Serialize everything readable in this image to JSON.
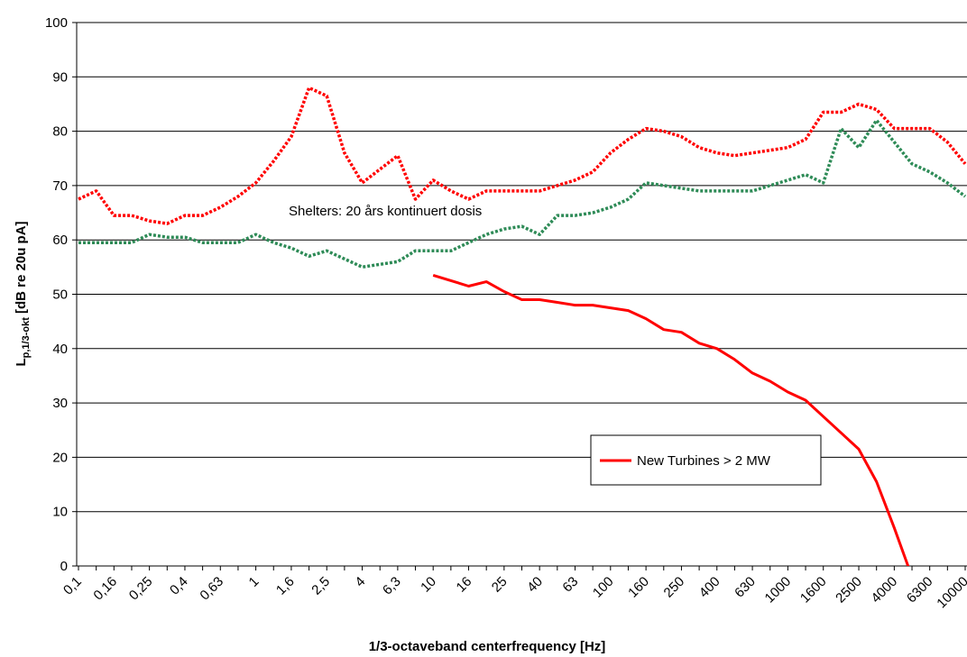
{
  "chart_data": {
    "type": "line",
    "ylabel": {
      "main": "L",
      "sub": "p,1/3-okt",
      "rest": " [dB re 20u pA]"
    },
    "xlabel": "1/3-octaveband centerfrequency [Hz]",
    "annotation": "Shelters: 20 års kontinuert dosis",
    "categories": [
      "0,1",
      null,
      "0,16",
      null,
      "0,25",
      null,
      "0,4",
      null,
      "0,63",
      null,
      "1",
      null,
      "1,6",
      null,
      "2,5",
      null,
      "4",
      null,
      "6,3",
      null,
      "10",
      null,
      "16",
      null,
      "25",
      null,
      "40",
      null,
      "63",
      null,
      "100",
      null,
      "160",
      null,
      "250",
      null,
      "400",
      null,
      "630",
      null,
      "1000",
      null,
      "1600",
      null,
      "2500",
      null,
      "4000",
      null,
      "6300",
      null,
      "10000"
    ],
    "ylim": [
      0,
      100
    ],
    "yticks": [
      0,
      10,
      20,
      30,
      40,
      50,
      60,
      70,
      80,
      90,
      100
    ],
    "grid": true,
    "series": [
      {
        "color": "#ff0000",
        "style": "dotted",
        "values": [
          67.5,
          69,
          64.5,
          64.5,
          63.5,
          63,
          64.5,
          64.5,
          66,
          68,
          70.5,
          74.5,
          79,
          88,
          86.5,
          76,
          70.5,
          73,
          75.5,
          67.5,
          71,
          69,
          67.5,
          69,
          69,
          69,
          69,
          70,
          71,
          72.5,
          76,
          78.5,
          80.5,
          80,
          79,
          77,
          76,
          75.5,
          76,
          76.5,
          77,
          78.5,
          83.5,
          83.5,
          85,
          84,
          80.5,
          80.5,
          80.5,
          78,
          74
        ]
      },
      {
        "color": "#2e8b57",
        "style": "dotted",
        "values": [
          59.5,
          59.5,
          59.5,
          59.5,
          61,
          60.5,
          60.5,
          59.5,
          59.5,
          59.5,
          61,
          59.5,
          58.5,
          57,
          58,
          56.5,
          55,
          55.5,
          56,
          58,
          58,
          58,
          59.5,
          61,
          62,
          62.5,
          61,
          64.5,
          64.5,
          65,
          66,
          67.5,
          70.5,
          70,
          69.5,
          69,
          69,
          69,
          69,
          70,
          71,
          72,
          70.5,
          80.5,
          77,
          82,
          78,
          74,
          72.5,
          70.5,
          68
        ]
      },
      {
        "name": "New Turbines > 2 MW",
        "color": "#ff0000",
        "style": "solid",
        "values": [
          null,
          null,
          null,
          null,
          null,
          null,
          null,
          null,
          null,
          null,
          null,
          null,
          null,
          null,
          null,
          null,
          null,
          null,
          null,
          null,
          53.5,
          52.5,
          51.5,
          52.3,
          50.5,
          49,
          49,
          48.5,
          48,
          48,
          47.5,
          47,
          45.5,
          43.5,
          43,
          41,
          40,
          38,
          35.5,
          34,
          32,
          30.5,
          27.5,
          24.5,
          21.5,
          15.5,
          7,
          -2,
          null,
          null,
          null
        ]
      }
    ]
  }
}
